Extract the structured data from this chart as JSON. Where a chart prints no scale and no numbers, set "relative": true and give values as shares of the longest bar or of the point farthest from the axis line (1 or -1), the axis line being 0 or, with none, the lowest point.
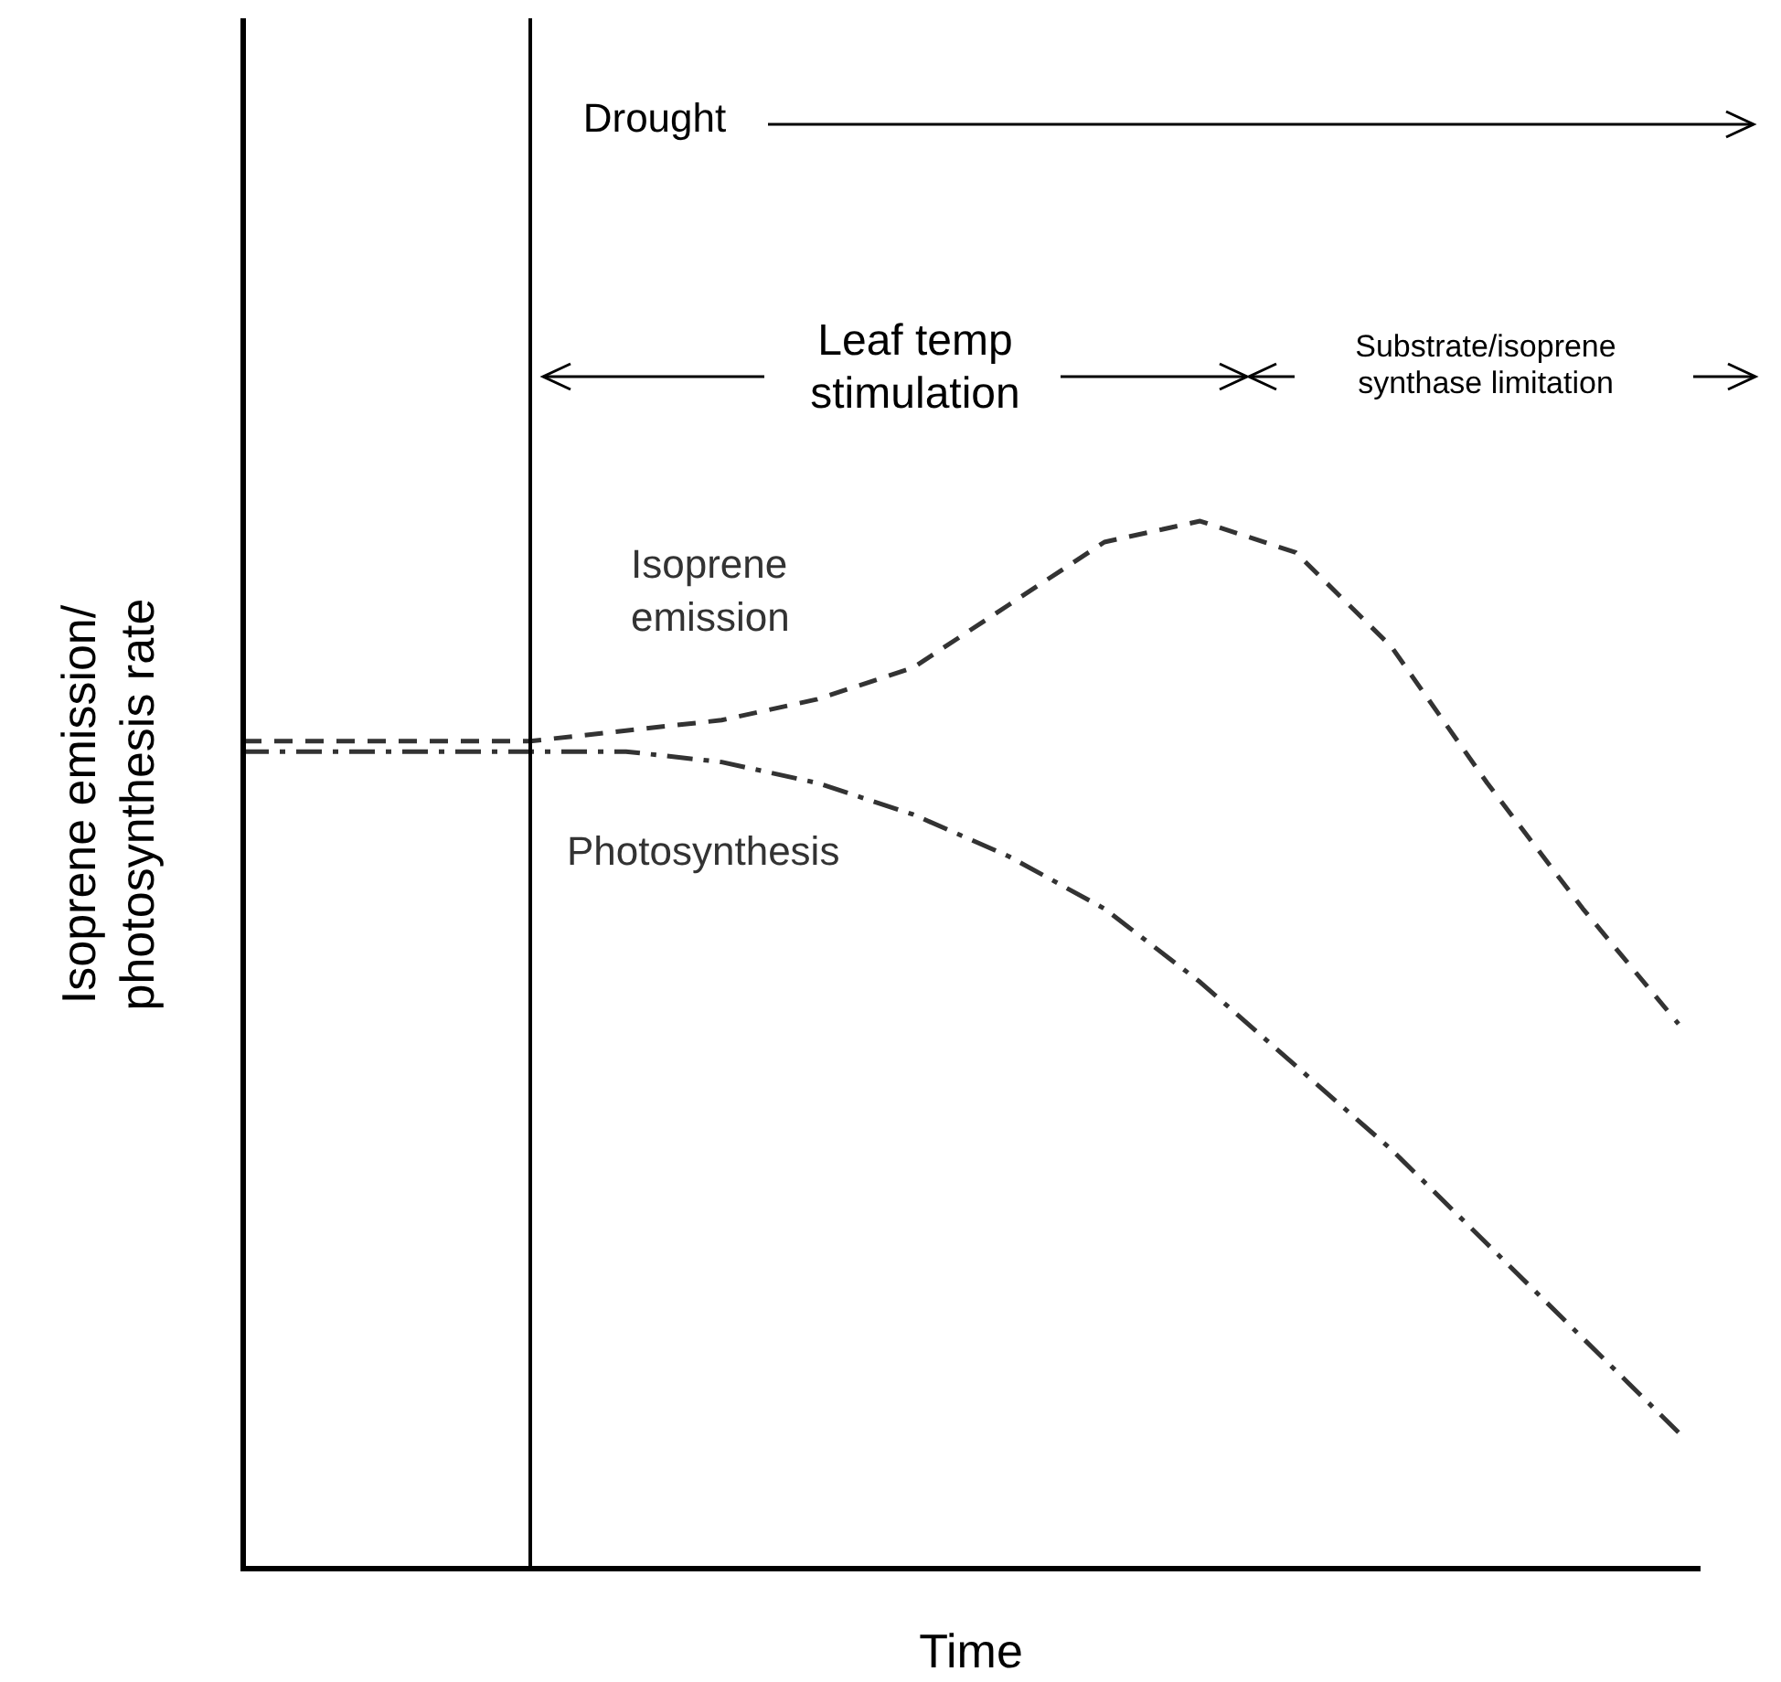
{
  "chart_data": {
    "type": "line",
    "relative": true,
    "xlabel": "Time",
    "ylabel": "Isoprene emission/photosynthesis rate",
    "categories": [
      null,
      null,
      null,
      null,
      null,
      null,
      null,
      null,
      null,
      null,
      null,
      null,
      null,
      null,
      null,
      null
    ],
    "series": [
      {
        "name": "Isoprene emission",
        "color": "#333333",
        "line_style": "dashed",
        "values": [
          0.79,
          0.79,
          0.79,
          0.79,
          0.8,
          0.81,
          0.83,
          0.86,
          0.92,
          0.98,
          1,
          0.97,
          0.88,
          0.75,
          0.63,
          0.52
        ]
      },
      {
        "name": "Photosynthesis",
        "color": "#333333",
        "line_style": "dashdot",
        "values": [
          0.78,
          0.78,
          0.78,
          0.78,
          0.78,
          0.77,
          0.75,
          0.72,
          0.68,
          0.63,
          0.56,
          0.48,
          0.4,
          0.31,
          0.22,
          0.13
        ]
      }
    ],
    "annotations": [
      "Drought",
      "Leaf temp stimulation",
      "Substrate/isoprene synthase limitation"
    ],
    "marker": "none"
  }
}
